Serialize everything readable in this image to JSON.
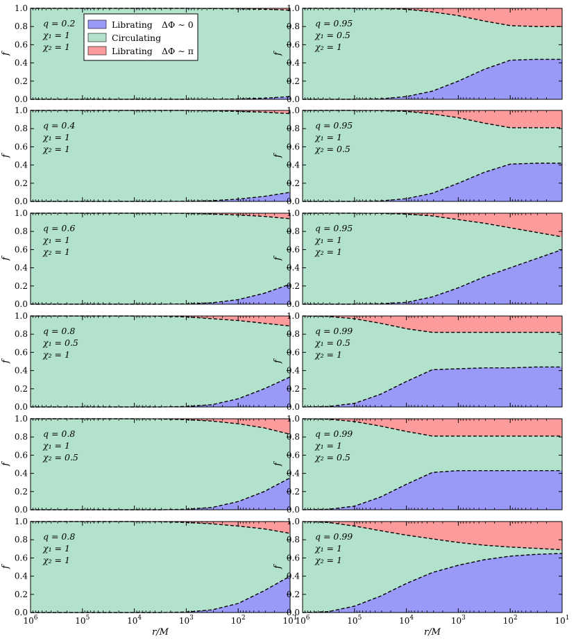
{
  "figure": {
    "ylabel": "f",
    "xlabel": "r/M",
    "yticks": [
      "0.0",
      "0.2",
      "0.4",
      "0.6",
      "0.8",
      "1.0"
    ],
    "xticks": [
      {
        "base": "10",
        "exp": "6"
      },
      {
        "base": "10",
        "exp": "5"
      },
      {
        "base": "10",
        "exp": "4"
      },
      {
        "base": "10",
        "exp": "3"
      },
      {
        "base": "10",
        "exp": "2"
      },
      {
        "base": "10",
        "exp": "1"
      }
    ],
    "legend": [
      {
        "label": "Librating",
        "phase": "ΔΦ ∼ 0",
        "color": "#9999f8"
      },
      {
        "label": "Circulating",
        "phase": "",
        "color": "#b2e2cc"
      },
      {
        "label": "Librating",
        "phase": "ΔΦ ∼ π",
        "color": "#fc9b9b"
      }
    ],
    "colors": {
      "lib0": "#9999f8",
      "circ": "#b2e2cc",
      "libpi": "#fc9b9b",
      "edge": "#000000"
    }
  },
  "chart_data": [
    {
      "type": "area",
      "stacked": true,
      "x_scale": "log",
      "x_inverted": true,
      "xlim": [
        1000000,
        10
      ],
      "ylim": [
        0,
        1
      ],
      "xlabel": "r/M",
      "ylabel": "f",
      "params": {
        "q": "q = 0.2",
        "chi1": "χ₁ = 1",
        "chi2": "χ₂ = 1"
      },
      "log_r": [
        6,
        5.5,
        5,
        4.5,
        4,
        3.5,
        3,
        2.5,
        2,
        1.5,
        1
      ],
      "lower": [
        0,
        0,
        0,
        0,
        0,
        0,
        0,
        0.001,
        0.004,
        0.012,
        0.03
      ],
      "upper": [
        1,
        1,
        1,
        1,
        1,
        1,
        1,
        0.998,
        0.995,
        0.99,
        0.98
      ]
    },
    {
      "type": "area",
      "stacked": true,
      "x_scale": "log",
      "x_inverted": true,
      "xlim": [
        1000000,
        10
      ],
      "ylim": [
        0,
        1
      ],
      "xlabel": "r/M",
      "ylabel": "f",
      "params": {
        "q": "q = 0.95",
        "chi1": "χ₁ = 0.5",
        "chi2": "χ₂ = 1"
      },
      "log_r": [
        6,
        5.5,
        5,
        4.5,
        4,
        3.5,
        3,
        2.5,
        2,
        1.5,
        1
      ],
      "lower": [
        0,
        0,
        0,
        0.005,
        0.03,
        0.09,
        0.2,
        0.33,
        0.43,
        0.44,
        0.44
      ],
      "upper": [
        1,
        1,
        1,
        0.998,
        0.99,
        0.96,
        0.92,
        0.86,
        0.81,
        0.8,
        0.8
      ]
    },
    {
      "type": "area",
      "stacked": true,
      "x_scale": "log",
      "x_inverted": true,
      "xlim": [
        1000000,
        10
      ],
      "ylim": [
        0,
        1
      ],
      "xlabel": "r/M",
      "ylabel": "f",
      "params": {
        "q": "q = 0.4",
        "chi1": "χ₁ = 1",
        "chi2": "χ₂ = 1"
      },
      "log_r": [
        6,
        5.5,
        5,
        4.5,
        4,
        3.5,
        3,
        2.5,
        2,
        1.5,
        1
      ],
      "lower": [
        0,
        0,
        0,
        0,
        0,
        0,
        0.002,
        0.008,
        0.025,
        0.055,
        0.1
      ],
      "upper": [
        1,
        1,
        1,
        1,
        1,
        1,
        1,
        0.995,
        0.99,
        0.98,
        0.965
      ]
    },
    {
      "type": "area",
      "stacked": true,
      "x_scale": "log",
      "x_inverted": true,
      "xlim": [
        1000000,
        10
      ],
      "ylim": [
        0,
        1
      ],
      "xlabel": "r/M",
      "ylabel": "f",
      "params": {
        "q": "q = 0.95",
        "chi1": "χ₁ = 1",
        "chi2": "χ₂ = 0.5"
      },
      "log_r": [
        6,
        5.5,
        5,
        4.5,
        4,
        3.5,
        3,
        2.5,
        2,
        1.5,
        1
      ],
      "lower": [
        0,
        0,
        0,
        0.005,
        0.03,
        0.09,
        0.2,
        0.32,
        0.41,
        0.42,
        0.42
      ],
      "upper": [
        1,
        1,
        1,
        0.998,
        0.99,
        0.96,
        0.92,
        0.86,
        0.81,
        0.81,
        0.81
      ]
    },
    {
      "type": "area",
      "stacked": true,
      "x_scale": "log",
      "x_inverted": true,
      "xlim": [
        1000000,
        10
      ],
      "ylim": [
        0,
        1
      ],
      "xlabel": "r/M",
      "ylabel": "f",
      "params": {
        "q": "q = 0.6",
        "chi1": "χ₁ = 1",
        "chi2": "χ₂ = 1"
      },
      "log_r": [
        6,
        5.5,
        5,
        4.5,
        4,
        3.5,
        3,
        2.5,
        2,
        1.5,
        1
      ],
      "lower": [
        0,
        0,
        0,
        0,
        0,
        0,
        0.003,
        0.015,
        0.05,
        0.12,
        0.22
      ],
      "upper": [
        1,
        1,
        1,
        1,
        1,
        1,
        0.998,
        0.99,
        0.98,
        0.965,
        0.94
      ]
    },
    {
      "type": "area",
      "stacked": true,
      "x_scale": "log",
      "x_inverted": true,
      "xlim": [
        1000000,
        10
      ],
      "ylim": [
        0,
        1
      ],
      "xlabel": "r/M",
      "ylabel": "f",
      "params": {
        "q": "q = 0.95",
        "chi1": "χ₁ = 1",
        "chi2": "χ₂ = 1"
      },
      "log_r": [
        6,
        5.5,
        5,
        4.5,
        4,
        3.5,
        3,
        2.5,
        2,
        1.5,
        1
      ],
      "lower": [
        0,
        0,
        0,
        0.005,
        0.02,
        0.08,
        0.18,
        0.3,
        0.4,
        0.5,
        0.6
      ],
      "upper": [
        1,
        1,
        1,
        0.998,
        0.99,
        0.97,
        0.93,
        0.89,
        0.84,
        0.79,
        0.74
      ]
    },
    {
      "type": "area",
      "stacked": true,
      "x_scale": "log",
      "x_inverted": true,
      "xlim": [
        1000000,
        10
      ],
      "ylim": [
        0,
        1
      ],
      "xlabel": "r/M",
      "ylabel": "f",
      "params": {
        "q": "q = 0.8",
        "chi1": "χ₁ = 0.5",
        "chi2": "χ₂ = 1"
      },
      "log_r": [
        6,
        5.5,
        5,
        4.5,
        4,
        3.5,
        3,
        2.5,
        2,
        1.5,
        1
      ],
      "lower": [
        0,
        0,
        0,
        0,
        0,
        0,
        0.005,
        0.025,
        0.09,
        0.2,
        0.33
      ],
      "upper": [
        1,
        1,
        1,
        1,
        1,
        0.998,
        0.99,
        0.97,
        0.95,
        0.92,
        0.89
      ]
    },
    {
      "type": "area",
      "stacked": true,
      "x_scale": "log",
      "x_inverted": true,
      "xlim": [
        1000000,
        10
      ],
      "ylim": [
        0,
        1
      ],
      "xlabel": "r/M",
      "ylabel": "f",
      "params": {
        "q": "q = 0.99",
        "chi1": "χ₁ = 0.5",
        "chi2": "χ₂ = 1"
      },
      "log_r": [
        6,
        5.5,
        5,
        4.5,
        4,
        3.5,
        3,
        2.5,
        2,
        1.5,
        1
      ],
      "lower": [
        0,
        0.005,
        0.04,
        0.14,
        0.28,
        0.41,
        0.42,
        0.43,
        0.43,
        0.44,
        0.44
      ],
      "upper": [
        1,
        0.995,
        0.97,
        0.92,
        0.86,
        0.82,
        0.82,
        0.82,
        0.82,
        0.82,
        0.82
      ]
    },
    {
      "type": "area",
      "stacked": true,
      "x_scale": "log",
      "x_inverted": true,
      "xlim": [
        1000000,
        10
      ],
      "ylim": [
        0,
        1
      ],
      "xlabel": "r/M",
      "ylabel": "f",
      "params": {
        "q": "q = 0.8",
        "chi1": "χ₁ = 1",
        "chi2": "χ₂ = 0.5"
      },
      "log_r": [
        6,
        5.5,
        5,
        4.5,
        4,
        3.5,
        3,
        2.5,
        2,
        1.5,
        1
      ],
      "lower": [
        0,
        0,
        0,
        0,
        0,
        0,
        0.005,
        0.025,
        0.09,
        0.2,
        0.35
      ],
      "upper": [
        1,
        1,
        1,
        1,
        1,
        0.998,
        0.99,
        0.975,
        0.945,
        0.9,
        0.83
      ]
    },
    {
      "type": "area",
      "stacked": true,
      "x_scale": "log",
      "x_inverted": true,
      "xlim": [
        1000000,
        10
      ],
      "ylim": [
        0,
        1
      ],
      "xlabel": "r/M",
      "ylabel": "f",
      "params": {
        "q": "q = 0.99",
        "chi1": "χ₁ = 1",
        "chi2": "χ₂ = 0.5"
      },
      "log_r": [
        6,
        5.5,
        5,
        4.5,
        4,
        3.5,
        3,
        2.5,
        2,
        1.5,
        1
      ],
      "lower": [
        0,
        0.005,
        0.04,
        0.14,
        0.28,
        0.41,
        0.43,
        0.43,
        0.43,
        0.43,
        0.43
      ],
      "upper": [
        1,
        0.995,
        0.97,
        0.92,
        0.86,
        0.81,
        0.81,
        0.81,
        0.81,
        0.81,
        0.81
      ]
    },
    {
      "type": "area",
      "stacked": true,
      "x_scale": "log",
      "x_inverted": true,
      "xlim": [
        1000000,
        10
      ],
      "ylim": [
        0,
        1
      ],
      "xlabel": "r/M",
      "ylabel": "f",
      "params": {
        "q": "q = 0.8",
        "chi1": "χ₁ = 1",
        "chi2": "χ₂ = 1"
      },
      "log_r": [
        6,
        5.5,
        5,
        4.5,
        4,
        3.5,
        3,
        2.5,
        2,
        1.5,
        1
      ],
      "lower": [
        0,
        0,
        0,
        0,
        0,
        0,
        0.005,
        0.03,
        0.1,
        0.24,
        0.4
      ],
      "upper": [
        1,
        1,
        1,
        1,
        1,
        0.998,
        0.99,
        0.975,
        0.95,
        0.92,
        0.87
      ]
    },
    {
      "type": "area",
      "stacked": true,
      "x_scale": "log",
      "x_inverted": true,
      "xlim": [
        1000000,
        10
      ],
      "ylim": [
        0,
        1
      ],
      "xlabel": "r/M",
      "ylabel": "f",
      "params": {
        "q": "q = 0.99",
        "chi1": "χ₁ = 1",
        "chi2": "χ₂ = 1"
      },
      "log_r": [
        6,
        5.5,
        5,
        4.5,
        4,
        3.5,
        3,
        2.5,
        2,
        1.5,
        1
      ],
      "lower": [
        0,
        0.01,
        0.07,
        0.18,
        0.32,
        0.44,
        0.52,
        0.58,
        0.62,
        0.64,
        0.65
      ],
      "upper": [
        1,
        0.99,
        0.95,
        0.9,
        0.85,
        0.81,
        0.77,
        0.74,
        0.72,
        0.705,
        0.69
      ]
    }
  ]
}
